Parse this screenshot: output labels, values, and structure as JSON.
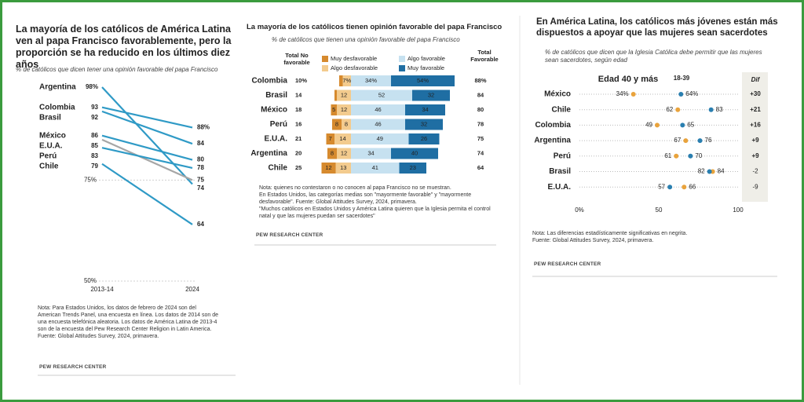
{
  "chart_data": [
    {
      "type": "slope",
      "title": "La mayoría de los católicos de América Latina ven al papa Francisco favorablemente, pero la proporción se ha reducido en los últimos diez años",
      "subtitle": "% de católicos que dicen tener una opinión favorable del papa Francisco",
      "x": [
        "2013-14",
        "2024"
      ],
      "ylim": [
        50,
        100
      ],
      "yticks": [
        {
          "value": 75,
          "label": "75%"
        },
        {
          "value": 50,
          "label": "50%"
        }
      ],
      "series": [
        {
          "name": "Argentina",
          "color": "#2f9ac6",
          "values": [
            98,
            74
          ],
          "value_labels": [
            "98%",
            "74"
          ]
        },
        {
          "name": "Colombia",
          "color": "#2f9ac6",
          "values": [
            93,
            88
          ],
          "value_labels": [
            "93",
            "88%"
          ]
        },
        {
          "name": "Brasil",
          "color": "#2f9ac6",
          "values": [
            92,
            84
          ],
          "value_labels": [
            "92",
            "84"
          ]
        },
        {
          "name": "México",
          "color": "#2f9ac6",
          "values": [
            86,
            80
          ],
          "value_labels": [
            "86",
            "80"
          ]
        },
        {
          "name": "E.U.A.",
          "color": "#a6a6a6",
          "values": [
            85,
            75
          ],
          "value_labels": [
            "85",
            "75"
          ]
        },
        {
          "name": "Perú",
          "color": "#2f9ac6",
          "values": [
            83,
            78
          ],
          "value_labels": [
            "83",
            "78"
          ]
        },
        {
          "name": "Chile",
          "color": "#2f9ac6",
          "values": [
            79,
            64
          ],
          "value_labels": [
            "79",
            "64"
          ]
        }
      ],
      "note": [
        "Nota: Para Estados Unidos, los datos de febrero de 2024 son del American Trends Panel, una encuesta en línea. Los datos de 2014 son de una encuesta telefónica aleatoria. Los datos de América Latina de 2013-4 son de la encuesta del Pew Research Center Religion in Latin America.",
        "Fuente: Global Attitudes Survey, 2024, primavera."
      ],
      "credit": "PEW RESEARCH CENTER"
    },
    {
      "type": "diverging_bar",
      "title": "La mayoría de los católicos tienen opinión favorable del papa Francisco",
      "subtitle": "% de católicos que tienen una opinión favorable del papa Francisco",
      "categories": [
        "Colombia",
        "Brasil",
        "México",
        "Perú",
        "E.U.A.",
        "Argentina",
        "Chile"
      ],
      "series": [
        {
          "name": "Muy desfavorable",
          "color": "#d68a2e",
          "direction": "left",
          "values": [
            3,
            2,
            5,
            8,
            7,
            8,
            12
          ],
          "value_labels": [
            null,
            null,
            "5",
            "8",
            "7",
            "8",
            "12"
          ]
        },
        {
          "name": "Algo desfavorable",
          "color": "#f3cb8e",
          "direction": "left",
          "values": [
            7,
            12,
            12,
            8,
            14,
            12,
            13
          ],
          "value_labels": [
            "7%",
            "12",
            "12",
            "8",
            "14",
            "12",
            "13"
          ]
        },
        {
          "name": "Algo favorable",
          "color": "#c6e1f0",
          "direction": "right",
          "values": [
            34,
            52,
            46,
            46,
            49,
            34,
            41
          ],
          "value_labels": [
            "34%",
            "52",
            "46",
            "46",
            "49",
            "34",
            "41"
          ]
        },
        {
          "name": "Muy favorable",
          "color": "#1f6ea3",
          "direction": "right",
          "values": [
            54,
            32,
            34,
            32,
            26,
            40,
            23
          ],
          "value_labels": [
            "54%",
            "32",
            "34",
            "32",
            "26",
            "40",
            "23"
          ]
        }
      ],
      "total_unfavorable": {
        "name": "Total No favorable",
        "values": [
          10,
          14,
          18,
          16,
          21,
          20,
          25
        ],
        "value_labels": [
          "10%",
          "14",
          "18",
          "16",
          "21",
          "20",
          "25"
        ]
      },
      "total_favorable": {
        "name": "Total Favorable",
        "values": [
          88,
          84,
          80,
          78,
          75,
          74,
          64
        ],
        "value_labels": [
          "88%",
          "84",
          "80",
          "78",
          "75",
          "74",
          "64"
        ]
      },
      "note": [
        "Nota: quienes no contestaron o no conocen al papa Francisco no se muestran.",
        "En Estados Unidos, las categorías medias son \"mayormente favorable\" y \"mayormente desfavorable\". Fuente: Global Attitudes Survey, 2024, primavera.",
        "\"Muchos católicos en Estados Unidos y América Latina quieren que la Iglesia permita el control natal y que las mujeres puedan ser sacerdotes\""
      ],
      "credit": "PEW RESEARCH CENTER"
    },
    {
      "type": "dot",
      "title": "En América Latina, los católicos más jóvenes están más dispuestos a apoyar que las mujeres sean sacerdotes",
      "subtitle": "% de católicos que dicen que la Iglesia Católica debe permitir que las mujeres sean sacerdotes, según edad",
      "categories": [
        "México",
        "Chile",
        "Colombia",
        "Argentina",
        "Perú",
        "Brasil",
        "E.U.A."
      ],
      "series": [
        {
          "name": "Edad 40 y más",
          "color": "#e9a33c",
          "values": [
            34,
            62,
            49,
            67,
            61,
            84,
            66
          ],
          "value_labels": [
            "34%",
            "62",
            "49",
            "67",
            "61",
            "84",
            "66"
          ]
        },
        {
          "name": "18-39",
          "color": "#2a7fb0",
          "values": [
            64,
            83,
            65,
            76,
            70,
            82,
            57
          ],
          "value_labels": [
            "64%",
            "83",
            "65",
            "76",
            "70",
            "82",
            "57"
          ]
        }
      ],
      "diff": {
        "name": "Dif",
        "values": [
          30,
          21,
          16,
          9,
          9,
          -2,
          -9
        ],
        "value_labels": [
          "+30",
          "+21",
          "+16",
          "+9",
          "+9",
          "-2",
          "-9"
        ],
        "significant": [
          true,
          true,
          true,
          true,
          true,
          false,
          false
        ]
      },
      "xlim": [
        0,
        100
      ],
      "xticks": [
        {
          "value": 0,
          "label": "0%"
        },
        50,
        100
      ],
      "note": [
        "Nota: Las diferencias estadísticamente significativas en negrita.",
        "Fuente: Global Attitudes Survey, 2024, primavera."
      ],
      "credit": "PEW RESEARCH CENTER"
    }
  ]
}
